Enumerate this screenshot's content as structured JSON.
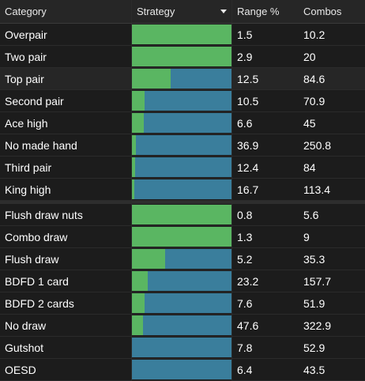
{
  "header": {
    "category": "Category",
    "strategy": "Strategy",
    "range": "Range %",
    "combos": "Combos"
  },
  "colors": {
    "bet": "#5ab662",
    "check": "#3a7e9c"
  },
  "groups": [
    {
      "rows": [
        {
          "category": "Overpair",
          "range": "1.5",
          "combos": "10.2",
          "bet_fraction": 1.0
        },
        {
          "category": "Two pair",
          "range": "2.9",
          "combos": "20",
          "bet_fraction": 1.0
        },
        {
          "category": "Top pair",
          "range": "12.5",
          "combos": "84.6",
          "bet_fraction": 0.39,
          "highlight": true
        },
        {
          "category": "Second pair",
          "range": "10.5",
          "combos": "70.9",
          "bet_fraction": 0.13
        },
        {
          "category": "Ace high",
          "range": "6.6",
          "combos": "45",
          "bet_fraction": 0.12
        },
        {
          "category": "No made hand",
          "range": "36.9",
          "combos": "250.8",
          "bet_fraction": 0.04
        },
        {
          "category": "Third pair",
          "range": "12.4",
          "combos": "84",
          "bet_fraction": 0.03
        },
        {
          "category": "King high",
          "range": "16.7",
          "combos": "113.4",
          "bet_fraction": 0.02
        }
      ]
    },
    {
      "rows": [
        {
          "category": "Flush draw nuts",
          "range": "0.8",
          "combos": "5.6",
          "bet_fraction": 1.0
        },
        {
          "category": "Combo draw",
          "range": "1.3",
          "combos": "9",
          "bet_fraction": 1.0
        },
        {
          "category": "Flush draw",
          "range": "5.2",
          "combos": "35.3",
          "bet_fraction": 0.33
        },
        {
          "category": "BDFD 1 card",
          "range": "23.2",
          "combos": "157.7",
          "bet_fraction": 0.16
        },
        {
          "category": "BDFD 2 cards",
          "range": "7.6",
          "combos": "51.9",
          "bet_fraction": 0.13
        },
        {
          "category": "No draw",
          "range": "47.6",
          "combos": "322.9",
          "bet_fraction": 0.11
        },
        {
          "category": "Gutshot",
          "range": "7.8",
          "combos": "52.9",
          "bet_fraction": 0.0
        },
        {
          "category": "OESD",
          "range": "6.4",
          "combos": "43.5",
          "bet_fraction": 0.0
        }
      ]
    }
  ]
}
